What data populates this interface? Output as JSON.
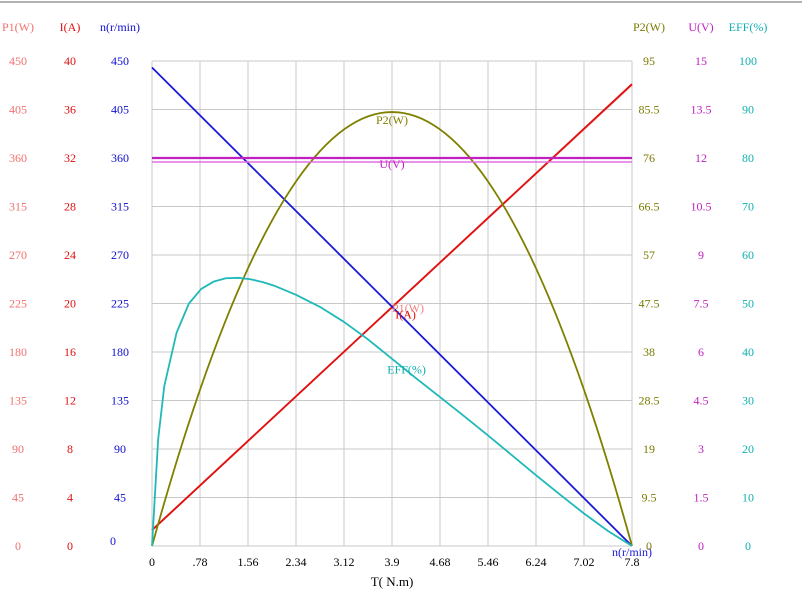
{
  "chart_data": {
    "type": "line",
    "xlabel": "T( N.m)",
    "x_ticks": [
      "0",
      ".78",
      "1.56",
      "2.34",
      "3.12",
      "3.9",
      "4.68",
      "5.46",
      "6.24",
      "7.02",
      "7.8"
    ],
    "xlim": [
      0,
      7.8
    ],
    "grid": true,
    "axes": [
      {
        "key": "p1",
        "label": "P1(W)",
        "side": "left",
        "color": "#f07070",
        "ticks": [
          "0",
          "45",
          "90",
          "135",
          "180",
          "225",
          "270",
          "315",
          "360",
          "405",
          "450"
        ],
        "max": 450
      },
      {
        "key": "i",
        "label": "I(A)",
        "side": "left",
        "color": "#e01010",
        "ticks": [
          "0",
          "4",
          "8",
          "12",
          "16",
          "20",
          "24",
          "28",
          "32",
          "36",
          "40"
        ],
        "max": 40
      },
      {
        "key": "n",
        "label": "n(r/min)",
        "side": "left",
        "color": "#1010d0",
        "ticks": [
          "0",
          "45",
          "90",
          "135",
          "180",
          "225",
          "270",
          "315",
          "360",
          "405",
          "450"
        ],
        "max": 450
      },
      {
        "key": "p2",
        "label": "P2(W)",
        "side": "right",
        "color": "#7a7a00",
        "ticks": [
          "0",
          "9.5",
          "19",
          "28.5",
          "38",
          "47.5",
          "57",
          "66.5",
          "76",
          "85.5",
          "95"
        ],
        "max": 95
      },
      {
        "key": "u",
        "label": "U(V)",
        "side": "right",
        "color": "#c020c0",
        "ticks": [
          "0",
          "1.5",
          "3",
          "4.5",
          "6",
          "7.5",
          "9",
          "10.5",
          "12",
          "13.5",
          "15"
        ],
        "max": 15
      },
      {
        "key": "eff",
        "label": "EFF(%)",
        "side": "right",
        "color": "#10b0b0",
        "ticks": [
          "0",
          "10",
          "20",
          "30",
          "40",
          "50",
          "60",
          "70",
          "80",
          "90",
          "100"
        ],
        "max": 100
      }
    ],
    "series": [
      {
        "name": "P1(W)",
        "axis": "p1",
        "color": "#f08080",
        "x": [
          0,
          7.8
        ],
        "y": [
          15,
          428
        ]
      },
      {
        "name": "I(A)",
        "axis": "i",
        "color": "#e01010",
        "x": [
          0,
          7.8
        ],
        "y": [
          1.3,
          38.1
        ]
      },
      {
        "name": "n(r/min)",
        "axis": "n",
        "color": "#1a1ad8",
        "x": [
          0,
          7.8
        ],
        "y": [
          444,
          0
        ]
      },
      {
        "name": "P2(W)",
        "axis": "p2",
        "color": "#808000",
        "x": [
          0,
          0.78,
          1.56,
          2.34,
          3.12,
          3.9,
          4.68,
          5.46,
          6.24,
          7.02,
          7.8
        ],
        "y": [
          0,
          31,
          55,
          72,
          82,
          85,
          82,
          72,
          55,
          31,
          0
        ]
      },
      {
        "name": "U(V)",
        "axis": "u",
        "color": "#c020c0",
        "x": [
          0,
          7.8
        ],
        "y": [
          12,
          12
        ]
      },
      {
        "name": "EFF(%)",
        "axis": "eff",
        "color": "#20b8b8",
        "x": [
          0,
          0.1,
          0.2,
          0.4,
          0.6,
          0.8,
          1.0,
          1.2,
          1.4,
          1.6,
          1.8,
          2.0,
          2.34,
          2.73,
          3.12,
          3.51,
          3.9,
          4.29,
          4.68,
          5.07,
          5.46,
          5.85,
          6.24,
          6.63,
          7.02,
          7.41,
          7.8
        ],
        "y": [
          0,
          22,
          33,
          44,
          50,
          53,
          54.5,
          55.2,
          55.3,
          55,
          54.4,
          53.6,
          51.8,
          49.3,
          46.2,
          42.6,
          38.6,
          34.6,
          30.7,
          26.8,
          22.8,
          18.7,
          14.6,
          10.6,
          6.7,
          3.1,
          0
        ]
      }
    ],
    "curve_labels": [
      {
        "text": "P2(W)",
        "series": "P2(W)",
        "x": 3.9,
        "y": 85,
        "axis": "p2",
        "color": "#808000"
      },
      {
        "text": "U(V)",
        "series": "U(V)",
        "x": 3.9,
        "y": 12,
        "axis": "u",
        "color": "#c020c0"
      },
      {
        "text": "P1(W)",
        "series": "P1(W)",
        "x": 3.9,
        "y": 220,
        "axis": "p1",
        "color": "#f08080"
      },
      {
        "text": "I(A)",
        "series": "I(A)",
        "x": 4.05,
        "y": 19.6,
        "axis": "i",
        "color": "#e01010"
      },
      {
        "text": "EFF(%)",
        "series": "EFF(%)",
        "x": 4.05,
        "y": 38,
        "axis": "eff",
        "color": "#10b0b0"
      },
      {
        "text": "n(r/min)",
        "series": "n(r/min)",
        "x": 7.8,
        "y": 0,
        "axis": "n",
        "color": "#1a1ad8"
      }
    ]
  }
}
